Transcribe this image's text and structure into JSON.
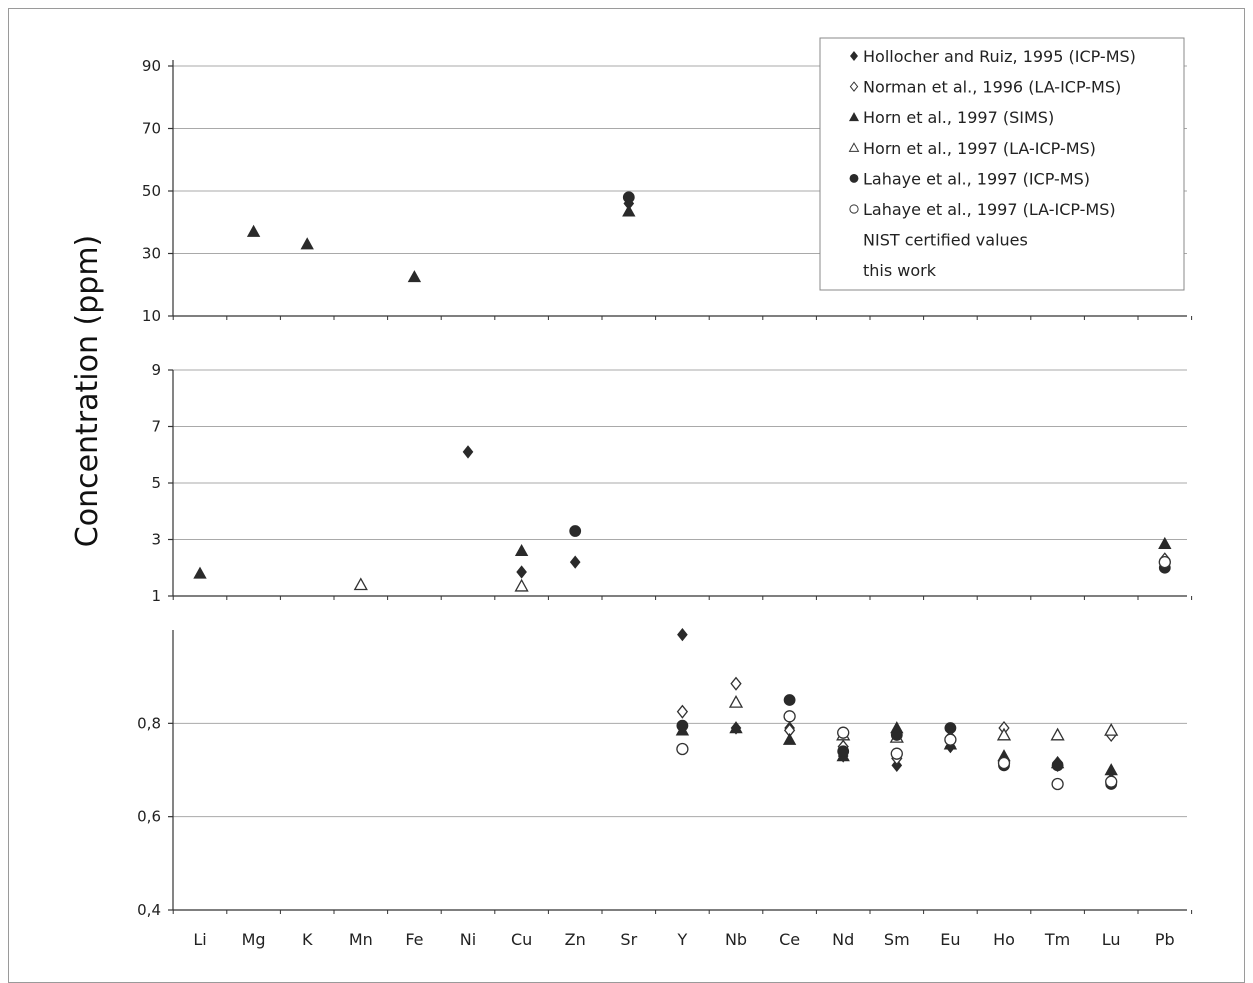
{
  "chart_data": {
    "type": "scatter",
    "ylabel": "Concentration (ppm)",
    "categories": [
      "Li",
      "Mg",
      "K",
      "Mn",
      "Fe",
      "Ni",
      "Cu",
      "Zn",
      "Sr",
      "Y",
      "Nb",
      "Ce",
      "Nd",
      "Sm",
      "Eu",
      "Ho",
      "Tm",
      "Lu",
      "Pb"
    ],
    "panels": [
      {
        "name": "upper",
        "ylim": [
          10,
          90
        ],
        "ticks": [
          10,
          30,
          50,
          70,
          90
        ],
        "tick_labels": [
          "10",
          "30",
          "50",
          "70",
          "90"
        ]
      },
      {
        "name": "middle",
        "ylim": [
          1,
          9
        ],
        "ticks": [
          1,
          3,
          5,
          7,
          9
        ],
        "tick_labels": [
          "1",
          "3",
          "5",
          "7",
          "9"
        ]
      },
      {
        "name": "lower",
        "ylim": [
          0.4,
          1.0
        ],
        "ticks": [
          0.4,
          0.6,
          0.8
        ],
        "tick_labels": [
          "0,4",
          "0,6",
          "0,8"
        ]
      }
    ],
    "legend": {
      "placement": "top-right",
      "entries": [
        {
          "label": "Hollocher and Ruiz, 1995 (ICP-MS)",
          "marker": "diamond-filled"
        },
        {
          "label": "Norman et al., 1996 (LA-ICP-MS)",
          "marker": "diamond-open"
        },
        {
          "label": "Horn et al., 1997 (SIMS)",
          "marker": "triangle-filled"
        },
        {
          "label": "Horn et al., 1997 (LA-ICP-MS)",
          "marker": "triangle-open"
        },
        {
          "label": "Lahaye et al., 1997 (ICP-MS)",
          "marker": "circle-filled"
        },
        {
          "label": "Lahaye et al., 1997 (LA-ICP-MS)",
          "marker": "circle-open"
        },
        {
          "label": "NIST certified values",
          "marker": "none"
        },
        {
          "label": "this work",
          "marker": "none"
        }
      ]
    },
    "series": [
      {
        "marker": "diamond-filled",
        "points": [
          {
            "x": "Ni",
            "y": 6.1
          },
          {
            "x": "Cu",
            "y": 1.85
          },
          {
            "x": "Zn",
            "y": 2.2
          },
          {
            "x": "Sr",
            "y": 46
          },
          {
            "x": "Y",
            "y": 0.99
          },
          {
            "x": "Nb",
            "y": 0.79
          },
          {
            "x": "Ce",
            "y": 0.79
          },
          {
            "x": "Nd",
            "y": 0.73
          },
          {
            "x": "Sm",
            "y": 0.71
          },
          {
            "x": "Eu",
            "y": 0.75
          },
          {
            "x": "Ho",
            "y": 0.72
          },
          {
            "x": "Tm",
            "y": 0.71
          },
          {
            "x": "Lu",
            "y": 0.68
          },
          {
            "x": "Pb",
            "y": 2.1
          }
        ]
      },
      {
        "marker": "diamond-open",
        "points": [
          {
            "x": "Y",
            "y": 0.825
          },
          {
            "x": "Nb",
            "y": 0.885
          },
          {
            "x": "Ce",
            "y": 0.785
          },
          {
            "x": "Nd",
            "y": 0.75
          },
          {
            "x": "Sm",
            "y": 0.725
          },
          {
            "x": "Eu",
            "y": 0.77
          },
          {
            "x": "Ho",
            "y": 0.79
          },
          {
            "x": "Tm",
            "y": 0.715
          },
          {
            "x": "Lu",
            "y": 0.775
          },
          {
            "x": "Pb",
            "y": 2.3
          }
        ]
      },
      {
        "marker": "triangle-filled",
        "points": [
          {
            "x": "Li",
            "y": 1.8
          },
          {
            "x": "Mg",
            "y": 37
          },
          {
            "x": "K",
            "y": 33
          },
          {
            "x": "Fe",
            "y": 22.5
          },
          {
            "x": "Cu",
            "y": 2.6
          },
          {
            "x": "Sr",
            "y": 43.5
          },
          {
            "x": "Y",
            "y": 0.785
          },
          {
            "x": "Nb",
            "y": 0.79
          },
          {
            "x": "Ce",
            "y": 0.765
          },
          {
            "x": "Nd",
            "y": 0.73
          },
          {
            "x": "Sm",
            "y": 0.79
          },
          {
            "x": "Eu",
            "y": 0.755
          },
          {
            "x": "Ho",
            "y": 0.73
          },
          {
            "x": "Tm",
            "y": 0.715
          },
          {
            "x": "Lu",
            "y": 0.7
          },
          {
            "x": "Pb",
            "y": 2.85
          }
        ]
      },
      {
        "marker": "triangle-open",
        "points": [
          {
            "x": "Mn",
            "y": 1.4
          },
          {
            "x": "Cu",
            "y": 1.35
          },
          {
            "x": "Nb",
            "y": 0.845
          },
          {
            "x": "Nd",
            "y": 0.775
          },
          {
            "x": "Sm",
            "y": 0.77
          },
          {
            "x": "Ho",
            "y": 0.775
          },
          {
            "x": "Tm",
            "y": 0.775
          },
          {
            "x": "Lu",
            "y": 0.785
          }
        ]
      },
      {
        "marker": "circle-filled",
        "points": [
          {
            "x": "Zn",
            "y": 3.3
          },
          {
            "x": "Sr",
            "y": 48
          },
          {
            "x": "Y",
            "y": 0.795
          },
          {
            "x": "Ce",
            "y": 0.85
          },
          {
            "x": "Nd",
            "y": 0.74
          },
          {
            "x": "Sm",
            "y": 0.775
          },
          {
            "x": "Eu",
            "y": 0.79
          },
          {
            "x": "Ho",
            "y": 0.71
          },
          {
            "x": "Tm",
            "y": 0.71
          },
          {
            "x": "Lu",
            "y": 0.67
          },
          {
            "x": "Pb",
            "y": 2.0
          }
        ]
      },
      {
        "marker": "circle-open",
        "points": [
          {
            "x": "Y",
            "y": 0.745
          },
          {
            "x": "Ce",
            "y": 0.815
          },
          {
            "x": "Nd",
            "y": 0.78
          },
          {
            "x": "Sm",
            "y": 0.735
          },
          {
            "x": "Eu",
            "y": 0.765
          },
          {
            "x": "Ho",
            "y": 0.715
          },
          {
            "x": "Tm",
            "y": 0.67
          },
          {
            "x": "Lu",
            "y": 0.675
          },
          {
            "x": "Pb",
            "y": 2.2
          }
        ]
      }
    ]
  }
}
